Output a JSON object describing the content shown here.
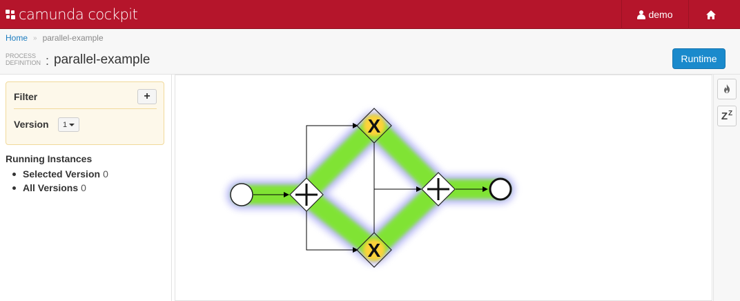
{
  "app": {
    "brand_text": "camunda cockpit",
    "brand_color": "#b5152b",
    "user_name": "demo",
    "user_icon": "user-icon",
    "home_icon": "home-icon"
  },
  "breadcrumb": {
    "home": "Home",
    "separator": "»",
    "current": "parallel-example"
  },
  "header": {
    "label_line1": "PROCESS",
    "label_line2": "DEFINITION",
    "colon": ":",
    "title": "parallel-example",
    "runtime_button": "Runtime",
    "runtime_button_color": "#1a8acc"
  },
  "filter": {
    "title": "Filter",
    "add_icon": "plus-icon",
    "add_label": "+",
    "version_label": "Version",
    "version_value": "1"
  },
  "running_instances": {
    "title": "Running Instances",
    "items": [
      {
        "label": "Selected Version",
        "count": "0"
      },
      {
        "label": "All Versions",
        "count": "0"
      }
    ]
  },
  "toolbar": {
    "heatmap_icon": "flame-icon",
    "sleep_label": "Z",
    "sleep_sup": "Z",
    "sleep_icon": "sleep-icon"
  },
  "diagram": {
    "heat_color_core": "#ffd23a",
    "heat_color_mid": "#8de82a",
    "heat_color_edge": "#7b7bf0",
    "gateway_xor_label": "X",
    "elements": [
      "start-event",
      "parallel-gateway-split",
      "exclusive-gateway-top",
      "exclusive-gateway-bottom",
      "parallel-gateway-join",
      "end-event"
    ]
  }
}
